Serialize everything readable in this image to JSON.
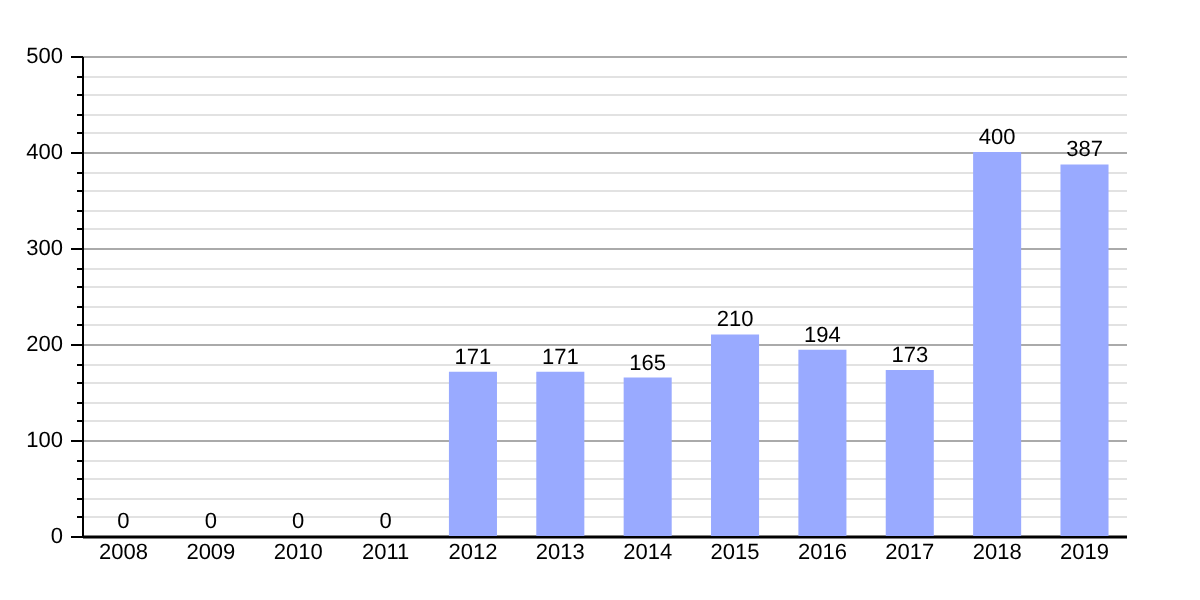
{
  "chart_data": {
    "type": "bar",
    "categories": [
      "2008",
      "2009",
      "2010",
      "2011",
      "2012",
      "2013",
      "2014",
      "2015",
      "2016",
      "2017",
      "2018",
      "2019"
    ],
    "values": [
      0,
      0,
      0,
      0,
      171,
      171,
      165,
      210,
      194,
      173,
      400,
      387
    ],
    "color": "#99aaff",
    "ylim": [
      0,
      500
    ],
    "yticks": [
      0,
      {
        "value": 20,
        "label": null
      },
      {
        "value": 40,
        "label": null
      },
      {
        "value": 60,
        "label": null
      },
      {
        "value": 80,
        "label": null
      },
      100,
      {
        "value": 120,
        "label": null
      },
      {
        "value": 140,
        "label": null
      },
      {
        "value": 160,
        "label": null
      },
      {
        "value": 180,
        "label": null
      },
      200,
      {
        "value": 220,
        "label": null
      },
      {
        "value": 240,
        "label": null
      },
      {
        "value": 260,
        "label": null
      },
      {
        "value": 280,
        "label": null
      },
      300,
      {
        "value": 320,
        "label": null
      },
      {
        "value": 340,
        "label": null
      },
      {
        "value": 360,
        "label": null
      },
      {
        "value": 380,
        "label": null
      },
      400,
      {
        "value": 420,
        "label": null
      },
      {
        "value": 440,
        "label": null
      },
      {
        "value": 460,
        "label": null
      },
      {
        "value": 480,
        "label": null
      },
      500
    ],
    "grid": true,
    "data_labels": true
  }
}
